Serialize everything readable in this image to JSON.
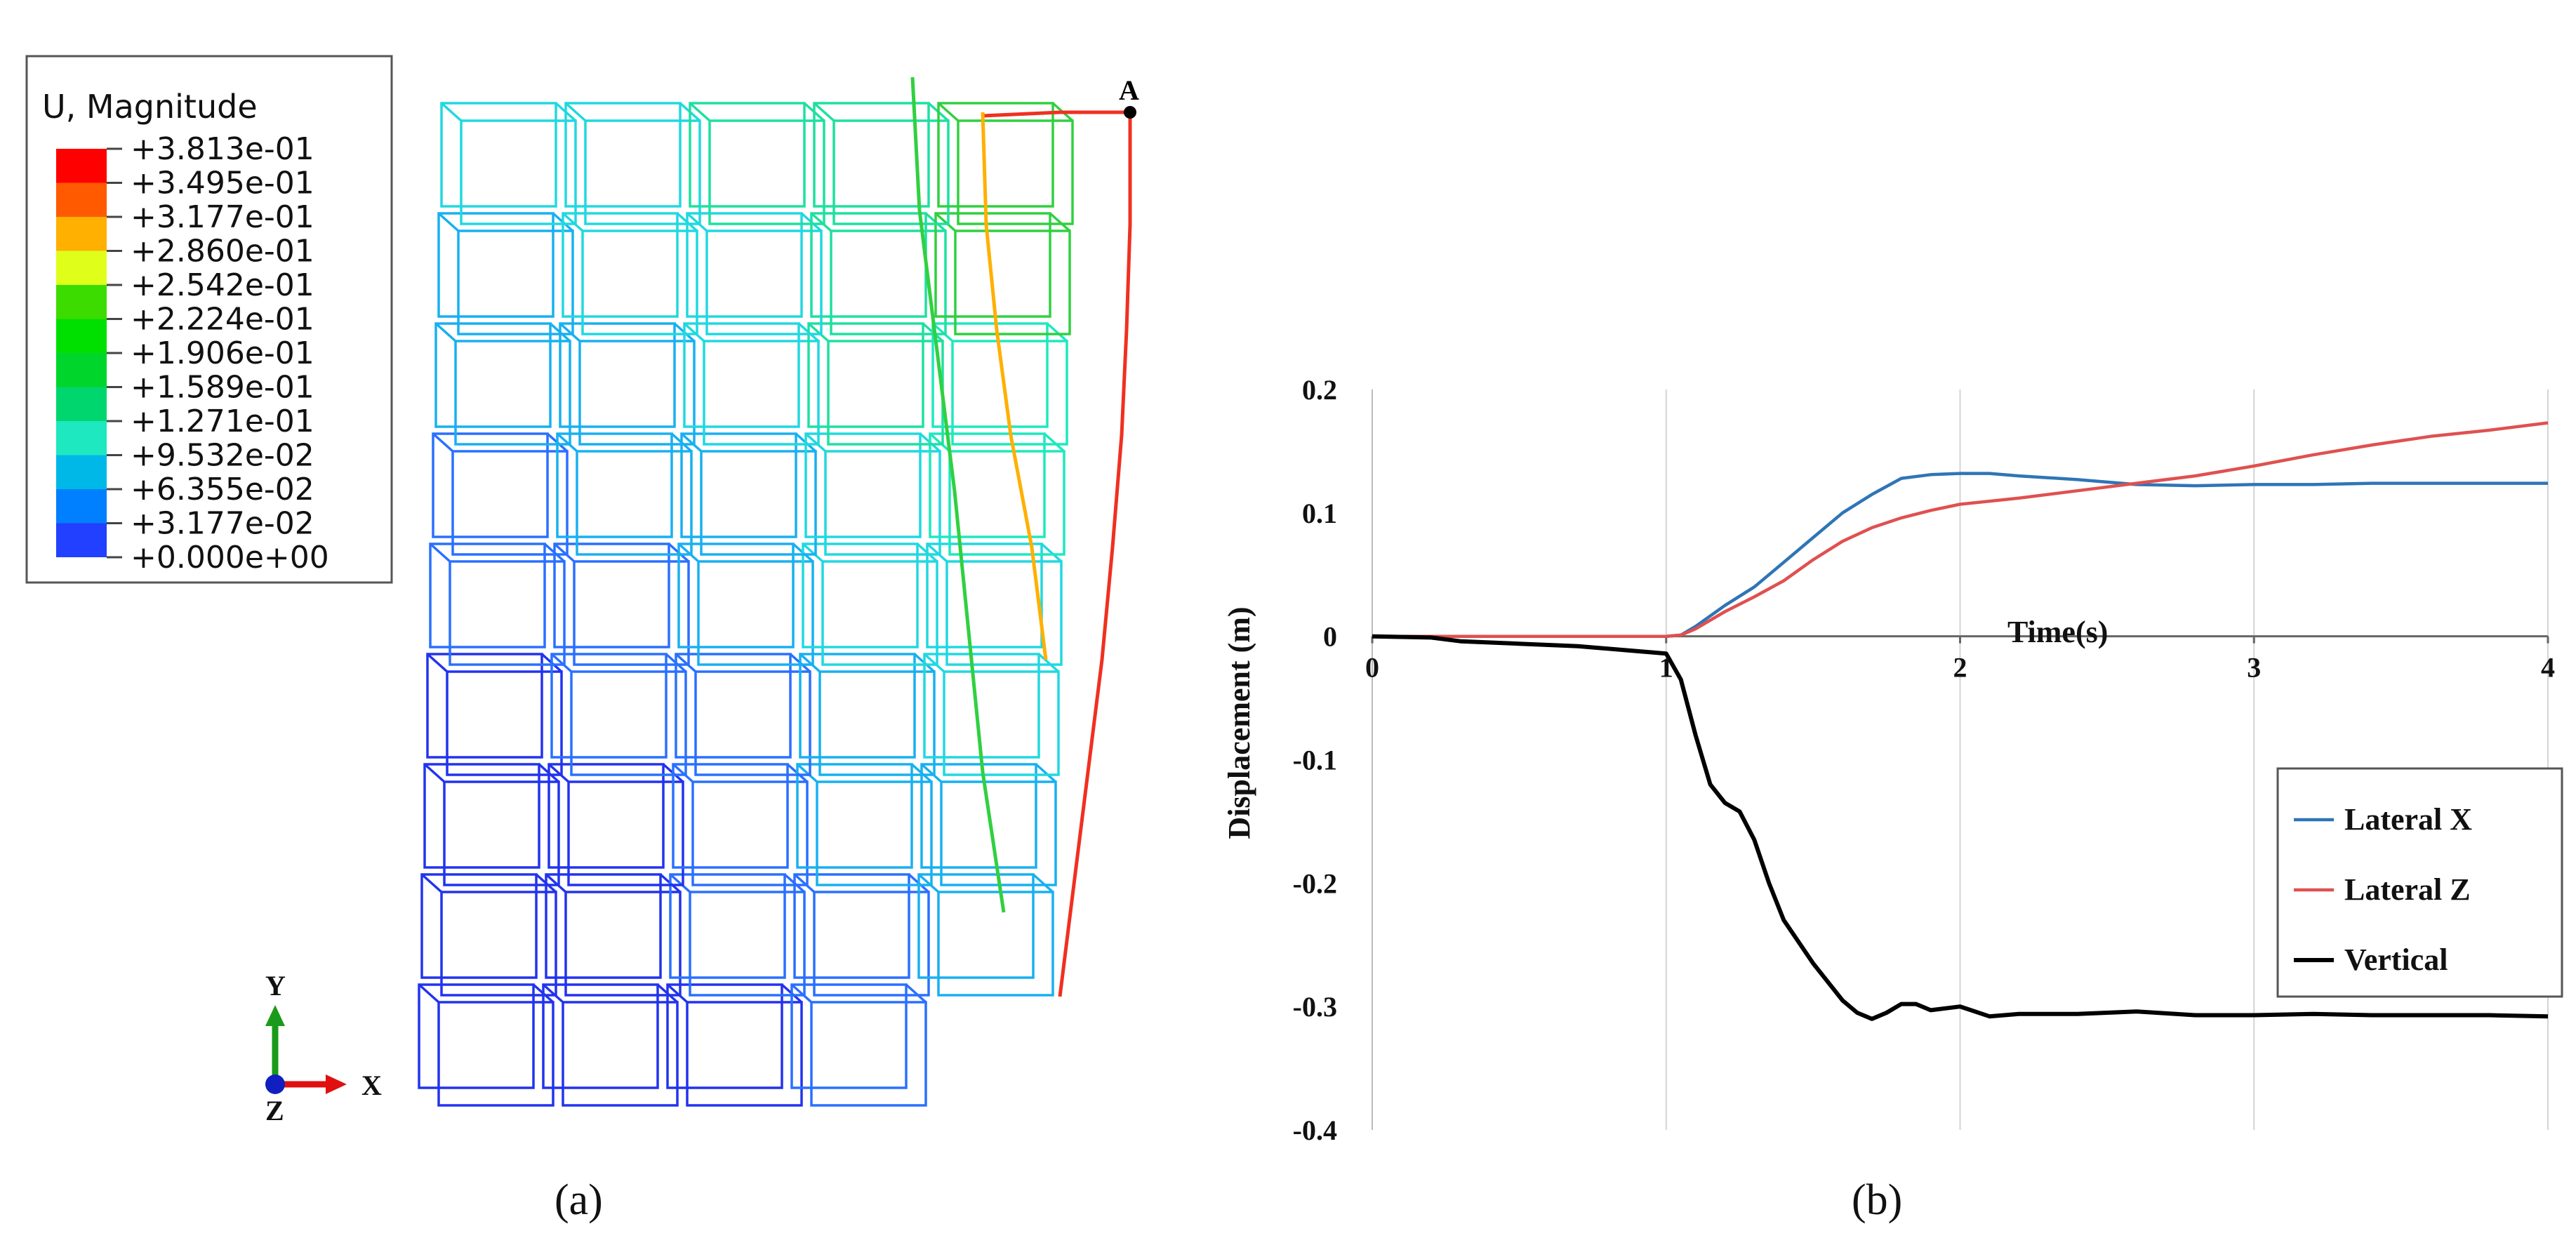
{
  "panel_a": {
    "legend": {
      "title": "U, Magnitude",
      "values": [
        "+3.813e-01",
        "+3.495e-01",
        "+3.177e-01",
        "+2.860e-01",
        "+2.542e-01",
        "+2.224e-01",
        "+1.906e-01",
        "+1.589e-01",
        "+1.271e-01",
        "+9.532e-02",
        "+6.355e-02",
        "+3.177e-02",
        "+0.000e+00"
      ],
      "colors": [
        "#ff0000",
        "#ff5a00",
        "#ffb000",
        "#dfff1a",
        "#3ddc00",
        "#00e000",
        "#00d52c",
        "#00d66e",
        "#1ee8c0",
        "#00b8e8",
        "#0080ff",
        "#2240ff"
      ]
    },
    "point_label": "A",
    "axis_triad": {
      "y_label": "Y",
      "x_label": "X",
      "z_label": "Z"
    },
    "caption": "(a)"
  },
  "chart_data": {
    "type": "line",
    "xlabel": "Time(s)",
    "ylabel": "Displacement (m)",
    "xlim": [
      0,
      4
    ],
    "ylim": [
      -0.4,
      0.2
    ],
    "xticks": [
      0,
      1,
      2,
      3,
      4
    ],
    "yticks": [
      0.2,
      0.1,
      0,
      -0.1,
      -0.2,
      -0.3,
      -0.4
    ],
    "xtick_labels": [
      "0",
      "1",
      "2",
      "3",
      "4"
    ],
    "ytick_labels": [
      "0.2",
      "0.1",
      "0",
      "-0.1",
      "-0.2",
      "-0.3",
      "-0.4"
    ],
    "grid": "vertical",
    "legend_position": "bottom-right",
    "series": [
      {
        "name": "Lateral X",
        "color": "#2e75b6",
        "x": [
          0,
          0.5,
          1.0,
          1.05,
          1.1,
          1.2,
          1.3,
          1.4,
          1.5,
          1.6,
          1.7,
          1.8,
          1.9,
          2.0,
          2.1,
          2.2,
          2.4,
          2.6,
          2.8,
          3.0,
          3.2,
          3.4,
          3.6,
          3.8,
          4.0
        ],
        "y": [
          0,
          0,
          0,
          0.001,
          0.008,
          0.025,
          0.04,
          0.06,
          0.08,
          0.1,
          0.115,
          0.128,
          0.131,
          0.132,
          0.132,
          0.13,
          0.127,
          0.123,
          0.122,
          0.123,
          0.123,
          0.124,
          0.124,
          0.124,
          0.124
        ]
      },
      {
        "name": "Lateral Z",
        "color": "#e05050",
        "x": [
          0,
          0.5,
          1.0,
          1.05,
          1.1,
          1.2,
          1.3,
          1.4,
          1.5,
          1.6,
          1.7,
          1.8,
          1.9,
          2.0,
          2.2,
          2.4,
          2.6,
          2.8,
          3.0,
          3.2,
          3.4,
          3.6,
          3.8,
          4.0
        ],
        "y": [
          0,
          0,
          0,
          0.001,
          0.006,
          0.02,
          0.032,
          0.045,
          0.062,
          0.077,
          0.088,
          0.096,
          0.102,
          0.107,
          0.112,
          0.118,
          0.124,
          0.13,
          0.138,
          0.147,
          0.155,
          0.162,
          0.167,
          0.173
        ]
      },
      {
        "name": "Vertical",
        "color": "#000000",
        "x": [
          0,
          0.2,
          0.3,
          0.5,
          0.7,
          0.9,
          1.0,
          1.05,
          1.1,
          1.15,
          1.2,
          1.25,
          1.3,
          1.35,
          1.4,
          1.5,
          1.6,
          1.65,
          1.7,
          1.75,
          1.8,
          1.85,
          1.9,
          2.0,
          2.1,
          2.2,
          2.4,
          2.6,
          2.8,
          3.0,
          3.2,
          3.4,
          3.6,
          3.8,
          4.0
        ],
        "y": [
          0,
          -0.001,
          -0.004,
          -0.006,
          -0.008,
          -0.012,
          -0.014,
          -0.035,
          -0.08,
          -0.12,
          -0.135,
          -0.142,
          -0.165,
          -0.2,
          -0.23,
          -0.265,
          -0.295,
          -0.305,
          -0.31,
          -0.305,
          -0.298,
          -0.298,
          -0.303,
          -0.3,
          -0.308,
          -0.306,
          -0.306,
          -0.304,
          -0.307,
          -0.307,
          -0.306,
          -0.307,
          -0.307,
          -0.307,
          -0.308
        ]
      }
    ],
    "caption": "(b)"
  }
}
